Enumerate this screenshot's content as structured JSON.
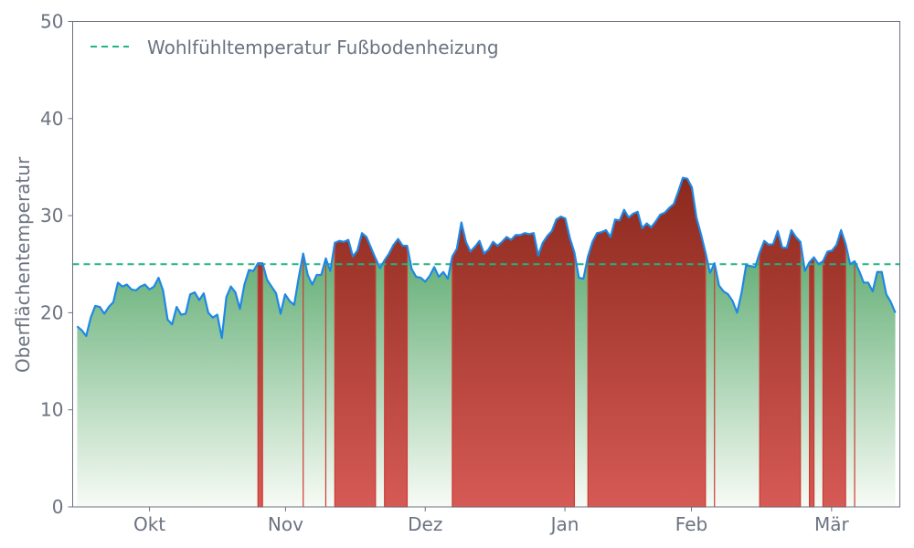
{
  "chart_data": {
    "type": "area",
    "title": "",
    "xlabel": "",
    "ylabel": "Oberflächentemperatur",
    "ylim": [
      0,
      50
    ],
    "xlim": [
      -1,
      182
    ],
    "yticks": [
      0,
      10,
      20,
      30,
      40,
      50
    ],
    "xticks": [
      {
        "label": "Okt",
        "x": 16.0
      },
      {
        "label": "Nov",
        "x": 46.1
      },
      {
        "label": "Dez",
        "x": 77.0
      },
      {
        "label": "Jan",
        "x": 107.9
      },
      {
        "label": "Feb",
        "x": 135.9
      },
      {
        "label": "Mär",
        "x": 166.9
      }
    ],
    "threshold": {
      "label": "Wohlfühltemperatur Fußbodenheizung",
      "value": 25,
      "color": "#1db584"
    },
    "legend_position": "top-left",
    "grid": false,
    "series": [
      {
        "name": "Oberflächentemperatur",
        "color": "#1e88e5",
        "values": [
          18.6,
          18.2,
          17.6,
          19.5,
          20.7,
          20.6,
          19.9,
          20.6,
          21.1,
          23.1,
          22.7,
          22.9,
          22.4,
          22.3,
          22.7,
          22.9,
          22.4,
          22.7,
          23.6,
          22.3,
          19.3,
          18.8,
          20.6,
          19.8,
          19.9,
          21.9,
          22.1,
          21.3,
          22.0,
          20.0,
          19.5,
          19.8,
          17.4,
          21.6,
          22.7,
          22.1,
          20.4,
          22.9,
          24.4,
          24.3,
          25.1,
          25.1,
          23.4,
          22.7,
          22.0,
          19.9,
          21.9,
          21.2,
          20.8,
          23.6,
          26.1,
          23.9,
          22.9,
          23.9,
          23.9,
          25.6,
          24.3,
          27.2,
          27.4,
          27.3,
          27.5,
          25.8,
          26.4,
          28.2,
          27.8,
          26.7,
          25.6,
          24.6,
          25.4,
          26.1,
          27.0,
          27.6,
          26.9,
          26.9,
          24.5,
          23.7,
          23.6,
          23.2,
          23.8,
          24.7,
          23.7,
          24.2,
          23.5,
          25.8,
          26.6,
          29.3,
          27.3,
          26.3,
          26.8,
          27.4,
          26.1,
          26.5,
          27.3,
          26.9,
          27.3,
          27.8,
          27.5,
          28.0,
          28.0,
          28.2,
          28.1,
          28.2,
          25.9,
          27.2,
          27.9,
          28.4,
          29.6,
          29.9,
          29.7,
          27.7,
          26.2,
          23.6,
          23.5,
          25.8,
          27.3,
          28.2,
          28.3,
          28.5,
          27.8,
          29.6,
          29.5,
          30.6,
          29.8,
          30.2,
          30.4,
          28.7,
          29.2,
          28.8,
          29.4,
          30.1,
          30.3,
          30.8,
          31.2,
          32.5,
          33.9,
          33.8,
          32.9,
          29.8,
          28.1,
          26.2,
          24.1,
          25.1,
          22.8,
          22.2,
          21.9,
          21.2,
          20.0,
          22.1,
          24.9,
          24.8,
          24.7,
          26.2,
          27.4,
          27.0,
          27.1,
          28.4,
          26.7,
          26.7,
          28.5,
          27.8,
          27.3,
          24.3,
          25.2,
          25.7,
          25.0,
          25.3,
          26.3,
          26.4,
          27.0,
          28.5,
          27.1,
          25.0,
          25.3,
          24.3,
          23.1,
          23.1,
          22.2,
          24.2,
          24.2,
          21.9,
          21.1,
          20.0
        ]
      }
    ],
    "colors": {
      "below_fill_top": "#5fac72",
      "below_fill_bottom": "#f7fbf5",
      "above_fill_top": "#8a281c",
      "above_fill_bottom": "#d65a55",
      "above_edge": "#cc3a33"
    }
  }
}
